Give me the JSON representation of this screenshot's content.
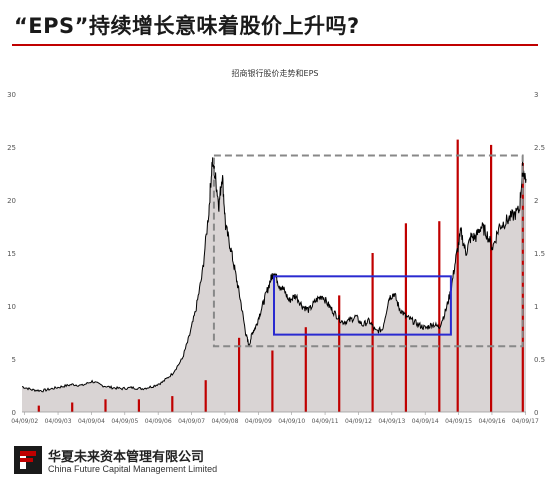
{
  "slide": {
    "title": "“EPS”持续增长意味着股价上升吗?"
  },
  "footer": {
    "company_cn": "华夏未来资本管理有限公司",
    "company_en": "China Future Capital Management Limited"
  },
  "colors": {
    "accent": "#c00000",
    "price_line": "#000000",
    "price_fill": "#d9d4d4",
    "eps_bar": "#c00000",
    "box_blue": "#2a2ad0",
    "box_gray": "#888888"
  },
  "chart_data": {
    "type": "area",
    "title": "招商银行股价走势和EPS",
    "xlabel": "",
    "ylabel": "",
    "ylim_left": [
      0,
      30
    ],
    "ylim_right": [
      0,
      3
    ],
    "yticks_left": [
      "0",
      "5",
      "10",
      "15",
      "20",
      "25",
      "30"
    ],
    "yticks_right": [
      "0",
      "0.5",
      "1",
      "1.5",
      "2",
      "2.5",
      "3"
    ],
    "x_tick_labels": [
      "04/09/02",
      "04/09/03",
      "04/09/04",
      "04/09/05",
      "04/09/06",
      "04/09/07",
      "04/09/08",
      "04/09/09",
      "04/09/10",
      "04/09/11",
      "04/09/12",
      "04/09/13",
      "04/09/14",
      "04/09/15",
      "04/09/16",
      "04/09/17"
    ],
    "x_range": [
      2002.0,
      2017.1
    ],
    "grid": false,
    "series": [
      {
        "axis": "left",
        "values_x": [
          2002.0,
          2002.3,
          2002.6,
          2002.9,
          2003.2,
          2003.5,
          2003.8,
          2004.1,
          2004.4,
          2004.7,
          2005.0,
          2005.3,
          2005.6,
          2005.9,
          2006.2,
          2006.5,
          2006.8,
          2007.0,
          2007.2,
          2007.4,
          2007.6,
          2007.7,
          2007.8,
          2007.9,
          2008.0,
          2008.1,
          2008.25,
          2008.4,
          2008.55,
          2008.7,
          2008.8,
          2008.9,
          2009.0,
          2009.15,
          2009.3,
          2009.45,
          2009.55,
          2009.7,
          2009.85,
          2010.0,
          2010.2,
          2010.4,
          2010.6,
          2010.8,
          2011.0,
          2011.2,
          2011.4,
          2011.6,
          2011.8,
          2012.0,
          2012.2,
          2012.4,
          2012.6,
          2012.8,
          2013.0,
          2013.15,
          2013.3,
          2013.5,
          2013.7,
          2013.9,
          2014.1,
          2014.3,
          2014.5,
          2014.7,
          2014.85,
          2015.0,
          2015.15,
          2015.3,
          2015.45,
          2015.6,
          2015.75,
          2015.9,
          2016.1,
          2016.3,
          2016.5,
          2016.7,
          2016.9,
          2017.0,
          2017.1
        ],
        "values_y": [
          2.4,
          2.1,
          2.0,
          2.2,
          2.4,
          2.6,
          2.5,
          2.9,
          2.5,
          2.3,
          2.2,
          2.3,
          2.2,
          2.4,
          2.8,
          3.6,
          5.0,
          7.0,
          9.5,
          13.0,
          19.0,
          23.8,
          22.0,
          19.5,
          22.5,
          17.5,
          15.5,
          13.0,
          10.5,
          7.5,
          6.2,
          7.5,
          8.0,
          9.5,
          11.0,
          12.5,
          13.3,
          12.0,
          11.5,
          10.5,
          11.0,
          10.0,
          9.6,
          10.5,
          11.0,
          10.0,
          9.2,
          8.5,
          8.6,
          9.0,
          8.2,
          8.6,
          7.6,
          7.8,
          10.8,
          11.2,
          9.8,
          9.0,
          8.6,
          8.2,
          7.9,
          8.3,
          8.0,
          9.6,
          11.5,
          14.5,
          17.0,
          15.0,
          16.5,
          16.5,
          17.5,
          17.0,
          15.5,
          17.5,
          18.0,
          18.5,
          19.0,
          23.0,
          22.0
        ]
      },
      {
        "axis": "right",
        "categories": [
          "04/09/02",
          "04/09/03",
          "04/09/04",
          "04/09/05",
          "04/09/06",
          "04/09/07",
          "04/09/08",
          "04/09/09",
          "04/09/10",
          "04/09/11",
          "04/09/12",
          "04/09/13",
          "04/09/14",
          "04/09/15",
          "04/09/16",
          "04/09/17"
        ],
        "values_x": [
          2002.5,
          2003.5,
          2004.5,
          2005.5,
          2006.5,
          2007.5,
          2008.5,
          2009.5,
          2010.5,
          2011.5,
          2012.5,
          2013.5,
          2014.5,
          2015.05,
          2016.05,
          2017.0
        ],
        "values": [
          0.06,
          0.09,
          0.12,
          0.12,
          0.15,
          0.3,
          0.7,
          0.58,
          0.8,
          1.1,
          1.5,
          1.78,
          1.8,
          2.57,
          2.52,
          2.35
        ]
      }
    ],
    "annotations": {
      "gray_dashed_box": {
        "x": [
          2007.75,
          2017.0
        ],
        "y": [
          6.2,
          24.2
        ]
      },
      "blue_box": {
        "x": [
          2009.55,
          2014.85
        ],
        "y": [
          7.3,
          12.8
        ]
      }
    }
  }
}
